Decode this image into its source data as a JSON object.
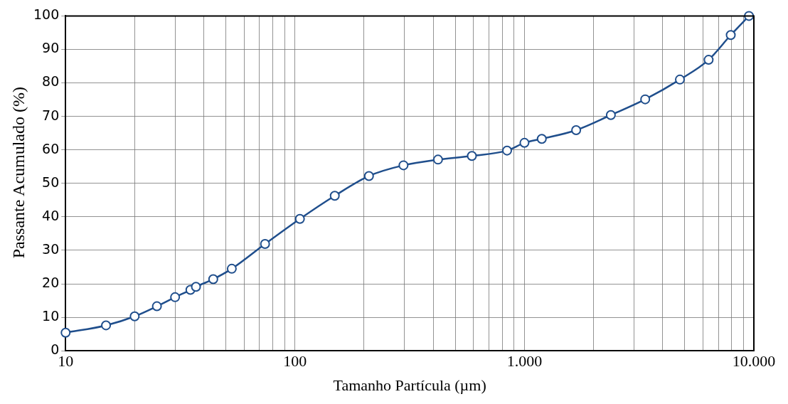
{
  "chart_data": {
    "type": "line",
    "xlabel": "Tamanho Partícula (µm)",
    "ylabel": "Passante Acumulado (%)",
    "x": [
      10,
      15,
      20,
      25,
      30,
      35,
      37,
      44,
      53,
      74,
      105,
      149,
      210,
      297,
      420,
      590,
      840,
      1000,
      1190,
      1680,
      2380,
      3360,
      4760,
      6350,
      7930,
      9520
    ],
    "series": [
      {
        "color": "#1f4e8c",
        "values": [
          5.4,
          7.6,
          10.3,
          13.3,
          16,
          18.2,
          19.1,
          21.4,
          24.5,
          31.9,
          39.4,
          46.3,
          52.2,
          55.4,
          57.1,
          58.2,
          59.8,
          62.1,
          63.3,
          65.9,
          70.4,
          75.1,
          81,
          86.9,
          94.3,
          100
        ]
      }
    ],
    "log": "x",
    "marker": "circle",
    "line_style": "solid",
    "grid": true,
    "legend": false,
    "xlim": [
      10,
      10000
    ],
    "ylim": [
      0,
      100
    ],
    "xticks": [
      10,
      {
        "value": 20,
        "label": null
      },
      {
        "value": 30,
        "label": null
      },
      {
        "value": 40,
        "label": null
      },
      {
        "value": 50,
        "label": null
      },
      {
        "value": 60,
        "label": null
      },
      {
        "value": 70,
        "label": null
      },
      {
        "value": 80,
        "label": null
      },
      {
        "value": 90,
        "label": null
      },
      100,
      {
        "value": 200,
        "label": null
      },
      {
        "value": 300,
        "label": null
      },
      {
        "value": 400,
        "label": null
      },
      {
        "value": 500,
        "label": null
      },
      {
        "value": 600,
        "label": null
      },
      {
        "value": 700,
        "label": null
      },
      {
        "value": 800,
        "label": null
      },
      {
        "value": 900,
        "label": null
      },
      {
        "value": 1000,
        "label": "1.000"
      },
      {
        "value": 2000,
        "label": null
      },
      {
        "value": 3000,
        "label": null
      },
      {
        "value": 4000,
        "label": null
      },
      {
        "value": 5000,
        "label": null
      },
      {
        "value": 6000,
        "label": null
      },
      {
        "value": 7000,
        "label": null
      },
      {
        "value": 8000,
        "label": null
      },
      {
        "value": 9000,
        "label": null
      },
      {
        "value": 10000,
        "label": "10.000"
      }
    ],
    "yticks": [
      0,
      10,
      20,
      30,
      40,
      50,
      60,
      70,
      80,
      90,
      100
    ]
  }
}
